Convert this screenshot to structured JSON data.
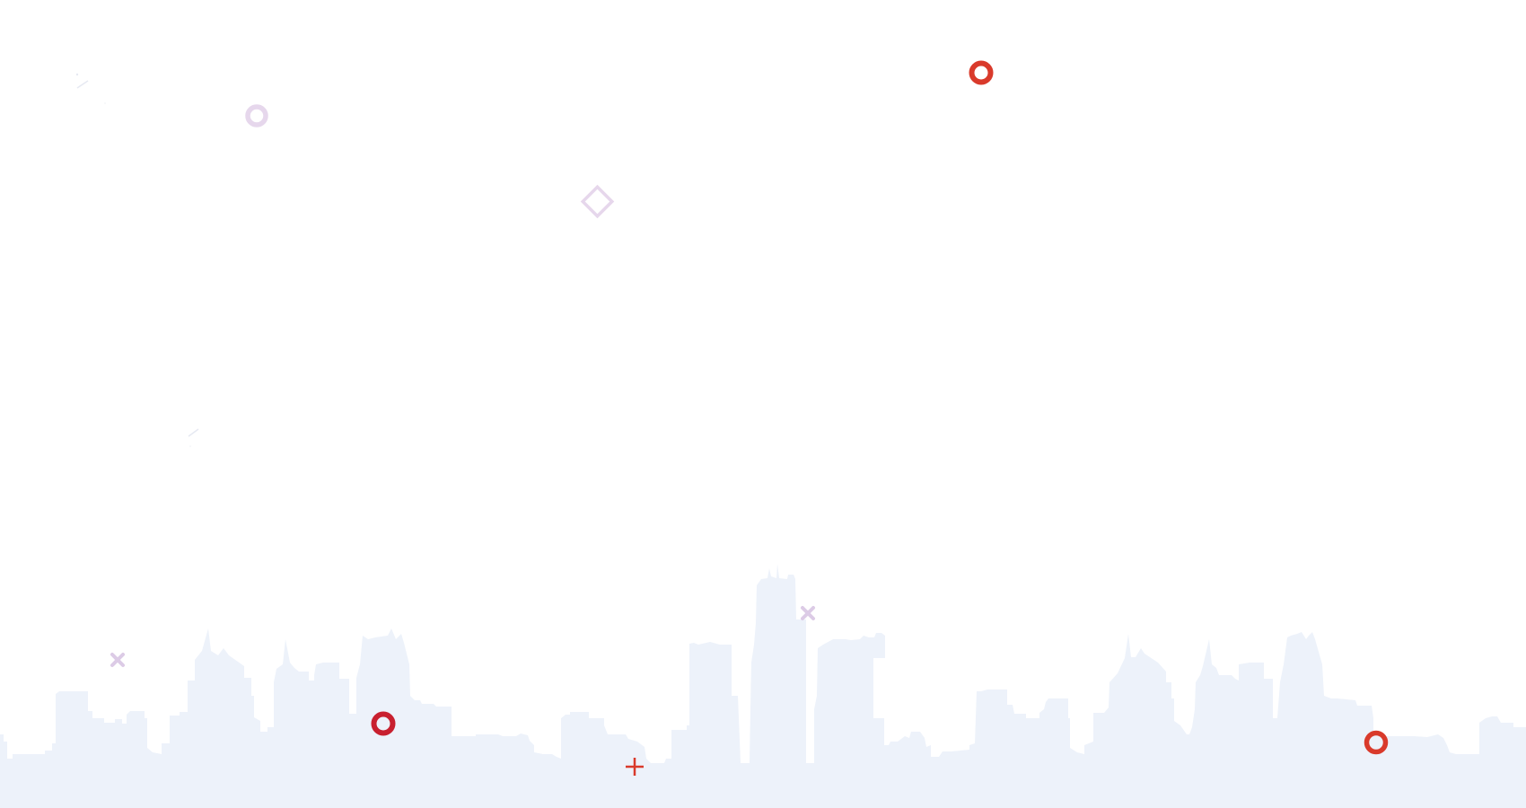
{
  "colors": {
    "background": "#ffffff",
    "skyline": "#edf2fa",
    "accent_red": "#d93a2b",
    "accent_dark_red": "#c8202f",
    "accent_lavender": "#e6d7ec",
    "accent_lavender_dark": "#dccbe6"
  },
  "decorations": [
    {
      "kind": "ring",
      "color": "accent_red"
    },
    {
      "kind": "ring",
      "color": "accent_dark_red"
    },
    {
      "kind": "ring",
      "color": "accent_red"
    },
    {
      "kind": "ring",
      "color": "accent_lavender"
    },
    {
      "kind": "diamond",
      "color": "accent_lavender"
    },
    {
      "kind": "cross",
      "color": "accent_lavender_dark"
    },
    {
      "kind": "cross",
      "color": "accent_lavender_dark"
    },
    {
      "kind": "plus",
      "color": "accent_red"
    }
  ]
}
